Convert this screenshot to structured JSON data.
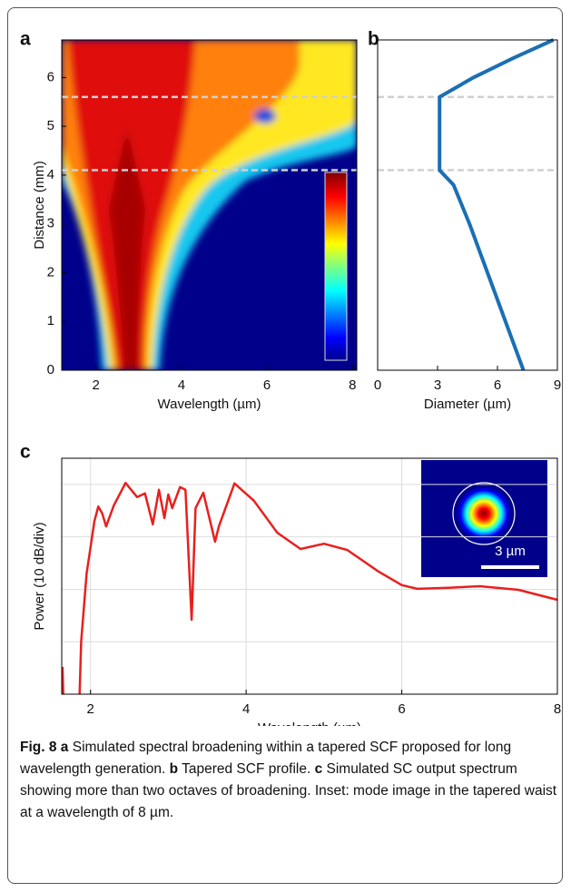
{
  "chart_data": [
    {
      "panel": "a",
      "type": "heatmap",
      "xlabel": "Wavelength (µm)",
      "ylabel": "Distance (mm)",
      "xlim": [
        1.2,
        8.1
      ],
      "xticks": [
        2,
        4,
        6,
        8
      ],
      "ylim": [
        0,
        6.77
      ],
      "yticks": [
        0,
        1,
        2,
        3,
        4,
        5,
        6
      ],
      "hlines": [
        4.1,
        5.6
      ]
    },
    {
      "panel": "b",
      "type": "line",
      "xlabel": "Diameter (µm)",
      "color": "#1b6fb3",
      "x": [
        7.3,
        6.4,
        5.5,
        4.6,
        3.8,
        3.1,
        3.1,
        4.8,
        6.8,
        8.8
      ],
      "values": [
        0,
        1,
        2,
        3,
        3.8,
        4.1,
        5.6,
        6.0,
        6.4,
        6.77
      ],
      "xlim": [
        0,
        9
      ],
      "xticks": [
        0,
        3,
        6,
        9
      ],
      "ylim": [
        0,
        6.77
      ],
      "hlines": [
        4.1,
        5.6
      ]
    },
    {
      "panel": "c",
      "type": "line",
      "xlabel": "Wavelength (µm)",
      "ylabel": "Power (10 dB/div)",
      "color": "#e8201e",
      "x": [
        1.64,
        1.65,
        1.7,
        1.86,
        1.88,
        1.95,
        2.0,
        2.05,
        2.1,
        2.15,
        2.2,
        2.3,
        2.45,
        2.6,
        2.7,
        2.8,
        2.88,
        2.95,
        3.0,
        3.05,
        3.15,
        3.22,
        3.3,
        3.35,
        3.45,
        3.6,
        3.65,
        3.85,
        4.1,
        4.4,
        4.7,
        5.0,
        5.3,
        5.7,
        6.0,
        6.2,
        6.6,
        7.0,
        7.5,
        8.0
      ],
      "values": [
        -39.8,
        -45,
        null,
        -45,
        -35,
        -22,
        -17,
        -12,
        -9.2,
        -10.5,
        -13,
        -9,
        -4.7,
        -7.4,
        -6.7,
        -12.6,
        -6,
        -11.4,
        -6.9,
        -9.5,
        -5.5,
        -6,
        -30.8,
        -9.5,
        -6.6,
        -15.9,
        -13,
        -4.8,
        -8.1,
        -14.2,
        -17.3,
        -16.3,
        -17.5,
        -21.6,
        -24.2,
        -24.9,
        -24.7,
        -24.4,
        -25.1,
        -27
      ],
      "xlim": [
        1.63,
        8
      ],
      "xticks": [
        2,
        4,
        6,
        8
      ],
      "ylim": [
        -45,
        0
      ],
      "ygrid": [
        -5,
        -15,
        -25,
        -35
      ],
      "grid": true,
      "inset_label": "3 µm"
    }
  ],
  "caption": {
    "label": "Fig. 8",
    "items": [
      {
        "tag": "a",
        "text": "Simulated spectral broadening within a tapered SCF proposed for long wavelength generation."
      },
      {
        "tag": "b",
        "text": "Tapered SCF profile."
      },
      {
        "tag": "c",
        "text": "Simulated SC output spectrum showing more than two octaves of broadening. Inset: mode image in the tapered waist at a wavelength of 8 µm."
      }
    ]
  }
}
